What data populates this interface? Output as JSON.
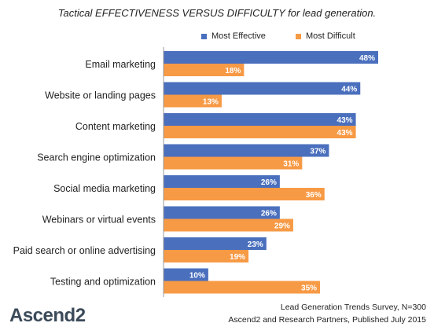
{
  "chart_data": {
    "type": "bar",
    "orientation": "horizontal",
    "title": "Tactical EFFECTIVENESS VERSUS DIFFICULTY for lead generation.",
    "categories": [
      "Email marketing",
      "Website or landing pages",
      "Content marketing",
      "Search engine optimization",
      "Social media marketing",
      "Webinars or virtual events",
      "Paid search or online advertising",
      "Testing and optimization"
    ],
    "series": [
      {
        "name": "Most Effective",
        "color": "#4a6fbd",
        "values": [
          48,
          44,
          43,
          37,
          26,
          26,
          23,
          10
        ]
      },
      {
        "name": "Most Difficult",
        "color": "#f79a45",
        "values": [
          18,
          13,
          43,
          31,
          36,
          29,
          19,
          35
        ]
      }
    ],
    "value_suffix": "%",
    "xlim": [
      0,
      48
    ],
    "grid": false,
    "legend": "top-right"
  },
  "brand": "Ascend2",
  "footer": {
    "line1": "Lead Generation Trends Survey, N=300",
    "line2": "Ascend2 and Research Partners, Published July 2015"
  }
}
